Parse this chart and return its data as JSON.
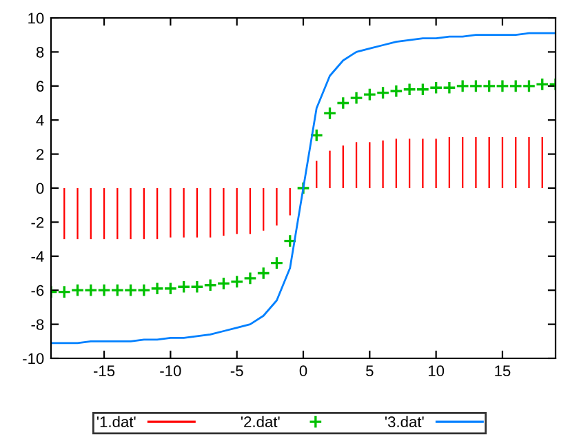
{
  "chart_data": {
    "type": "line",
    "xlim": [
      -19,
      19
    ],
    "ylim": [
      -10,
      10
    ],
    "xticks": [
      -15,
      -10,
      -5,
      0,
      5,
      10,
      15
    ],
    "yticks": [
      -10,
      -8,
      -6,
      -4,
      -2,
      0,
      2,
      4,
      6,
      8,
      10
    ],
    "grid": false,
    "legend": "bottom",
    "series": [
      {
        "name": "'1.dat'",
        "type": "bar",
        "color": "#ff0000",
        "x": [
          -18,
          -17,
          -16,
          -15,
          -14,
          -13,
          -12,
          -11,
          -10,
          -9,
          -8,
          -7,
          -6,
          -5,
          -4,
          -3,
          -2,
          -1,
          0,
          1,
          2,
          3,
          4,
          5,
          6,
          7,
          8,
          9,
          10,
          11,
          12,
          13,
          14,
          15,
          16,
          17,
          18
        ],
        "values": [
          -3.0,
          -3.0,
          -3.0,
          -3.0,
          -3.0,
          -3.0,
          -3.0,
          -3.0,
          -2.9,
          -2.9,
          -2.9,
          -2.9,
          -2.8,
          -2.7,
          -2.7,
          -2.5,
          -2.2,
          -1.6,
          0,
          1.6,
          2.2,
          2.5,
          2.7,
          2.7,
          2.8,
          2.9,
          2.9,
          2.9,
          2.9,
          3.0,
          3.0,
          3.0,
          3.0,
          3.0,
          3.0,
          3.0,
          3.0
        ]
      },
      {
        "name": "'2.dat'",
        "type": "scatter",
        "marker": "cross",
        "color": "#00c000",
        "x": [
          -19,
          -18,
          -17,
          -16,
          -15,
          -14,
          -13,
          -12,
          -11,
          -10,
          -9,
          -8,
          -7,
          -6,
          -5,
          -4,
          -3,
          -2,
          -1,
          0,
          1,
          2,
          3,
          4,
          5,
          6,
          7,
          8,
          9,
          10,
          11,
          12,
          13,
          14,
          15,
          16,
          17,
          18,
          19
        ],
        "values": [
          -6.1,
          -6.1,
          -6.0,
          -6.0,
          -6.0,
          -6.0,
          -6.0,
          -6.0,
          -5.9,
          -5.9,
          -5.8,
          -5.8,
          -5.7,
          -5.6,
          -5.5,
          -5.3,
          -5.0,
          -4.4,
          -3.1,
          0,
          3.1,
          4.4,
          5.0,
          5.3,
          5.5,
          5.6,
          5.7,
          5.8,
          5.8,
          5.9,
          5.9,
          6.0,
          6.0,
          6.0,
          6.0,
          6.0,
          6.0,
          6.1,
          6.1
        ]
      },
      {
        "name": "'3.dat'",
        "color": "#0080ff",
        "x": [
          -19,
          -18,
          -17,
          -16,
          -15,
          -14,
          -13,
          -12,
          -11,
          -10,
          -9,
          -8,
          -7,
          -6,
          -5,
          -4,
          -3,
          -2,
          -1,
          0,
          1,
          2,
          3,
          4,
          5,
          6,
          7,
          8,
          9,
          10,
          11,
          12,
          13,
          14,
          15,
          16,
          17,
          18,
          19
        ],
        "values": [
          -9.1,
          -9.1,
          -9.1,
          -9.0,
          -9.0,
          -9.0,
          -9.0,
          -8.9,
          -8.9,
          -8.8,
          -8.8,
          -8.7,
          -8.6,
          -8.4,
          -8.2,
          -8.0,
          -7.5,
          -6.6,
          -4.7,
          0,
          4.7,
          6.6,
          7.5,
          8.0,
          8.2,
          8.4,
          8.6,
          8.7,
          8.8,
          8.8,
          8.9,
          8.9,
          9.0,
          9.0,
          9.0,
          9.0,
          9.1,
          9.1,
          9.1
        ]
      }
    ]
  }
}
